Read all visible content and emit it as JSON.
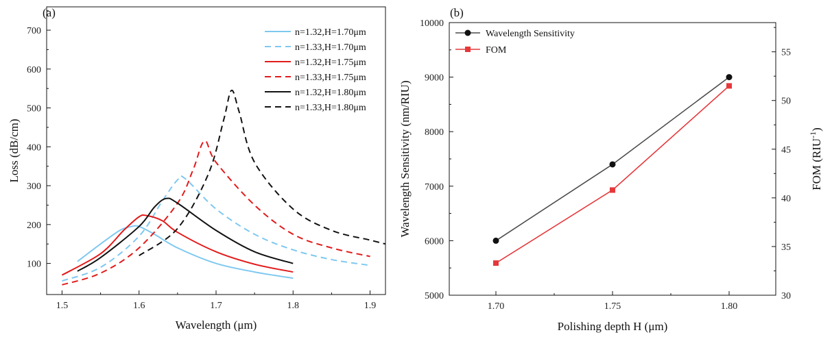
{
  "chart_data": [
    {
      "panel_label": "(a)",
      "type": "line",
      "xlabel": "Wavelength (μm)",
      "ylabel": "Loss (dB/cm)",
      "xlim": [
        1.48,
        1.92
      ],
      "ylim": [
        20,
        760
      ],
      "xticks": [
        1.5,
        1.6,
        1.7,
        1.8,
        1.9
      ],
      "yticks": [
        100,
        200,
        300,
        400,
        500,
        600,
        700
      ],
      "legend_position": "top-right",
      "series": [
        {
          "name": "n=1.32,H=1.70μm",
          "color": "#7ec8f0",
          "dash": "solid",
          "x": [
            1.52,
            1.55,
            1.575,
            1.59,
            1.6,
            1.62,
            1.65,
            1.7,
            1.75,
            1.8
          ],
          "y": [
            105,
            150,
            185,
            195,
            195,
            175,
            140,
            100,
            78,
            62
          ]
        },
        {
          "name": "n=1.33,H=1.70μm",
          "color": "#7ec8f0",
          "dash": "dashed",
          "x": [
            1.5,
            1.55,
            1.6,
            1.63,
            1.65,
            1.66,
            1.7,
            1.75,
            1.8,
            1.85,
            1.9
          ],
          "y": [
            55,
            90,
            170,
            260,
            315,
            318,
            240,
            175,
            135,
            110,
            95
          ]
        },
        {
          "name": "n=1.32,H=1.75μm",
          "color": "#e21a1a",
          "dash": "solid",
          "x": [
            1.5,
            1.55,
            1.58,
            1.6,
            1.61,
            1.63,
            1.65,
            1.7,
            1.75,
            1.8
          ],
          "y": [
            70,
            125,
            185,
            220,
            223,
            210,
            180,
            130,
            98,
            78
          ]
        },
        {
          "name": "n=1.33,H=1.75μm",
          "color": "#e21a1a",
          "dash": "dashed",
          "x": [
            1.5,
            1.55,
            1.6,
            1.65,
            1.67,
            1.685,
            1.7,
            1.75,
            1.8,
            1.85,
            1.9
          ],
          "y": [
            45,
            75,
            140,
            255,
            340,
            415,
            360,
            250,
            175,
            140,
            118
          ]
        },
        {
          "name": "n=1.32,H=1.80μm",
          "color": "#111111",
          "dash": "solid",
          "x": [
            1.52,
            1.55,
            1.6,
            1.62,
            1.635,
            1.65,
            1.7,
            1.75,
            1.8
          ],
          "y": [
            80,
            115,
            195,
            245,
            267,
            255,
            185,
            130,
            100
          ]
        },
        {
          "name": "n=1.33,H=1.80μm",
          "color": "#111111",
          "dash": "dashed",
          "x": [
            1.6,
            1.65,
            1.69,
            1.71,
            1.72,
            1.73,
            1.75,
            1.8,
            1.85,
            1.9,
            1.92
          ],
          "y": [
            120,
            190,
            330,
            470,
            545,
            490,
            360,
            240,
            185,
            160,
            150
          ]
        }
      ]
    },
    {
      "panel_label": "(b)",
      "type": "line",
      "xlabel": "Polishing depth H (μm)",
      "ylabel": "Wavelength Sensitivity (nm/RIU)",
      "ylabel_right_main": "FOM (RIU",
      "ylabel_right_sup": "-1",
      "ylabel_right_end": ")",
      "categories": [
        "1.70",
        "1.75",
        "1.80"
      ],
      "xlim": [
        1.68,
        1.82
      ],
      "ylim": [
        5000,
        10000
      ],
      "ylim_right": [
        30,
        58
      ],
      "yticks": [
        5000,
        6000,
        7000,
        8000,
        9000,
        10000
      ],
      "yticks_right": [
        30,
        35,
        40,
        45,
        50,
        55
      ],
      "legend_position": "top-left",
      "series": [
        {
          "name": "Wavelength Sensitivity",
          "axis": "left",
          "color": "#4a4a4a",
          "marker": "circle",
          "x": [
            1.7,
            1.75,
            1.8
          ],
          "values": [
            6000,
            7400,
            9000
          ]
        },
        {
          "name": "FOM",
          "axis": "right",
          "color": "#e5383b",
          "marker": "square",
          "x": [
            1.7,
            1.75,
            1.8
          ],
          "values": [
            33.3,
            40.8,
            51.5
          ]
        }
      ]
    }
  ]
}
